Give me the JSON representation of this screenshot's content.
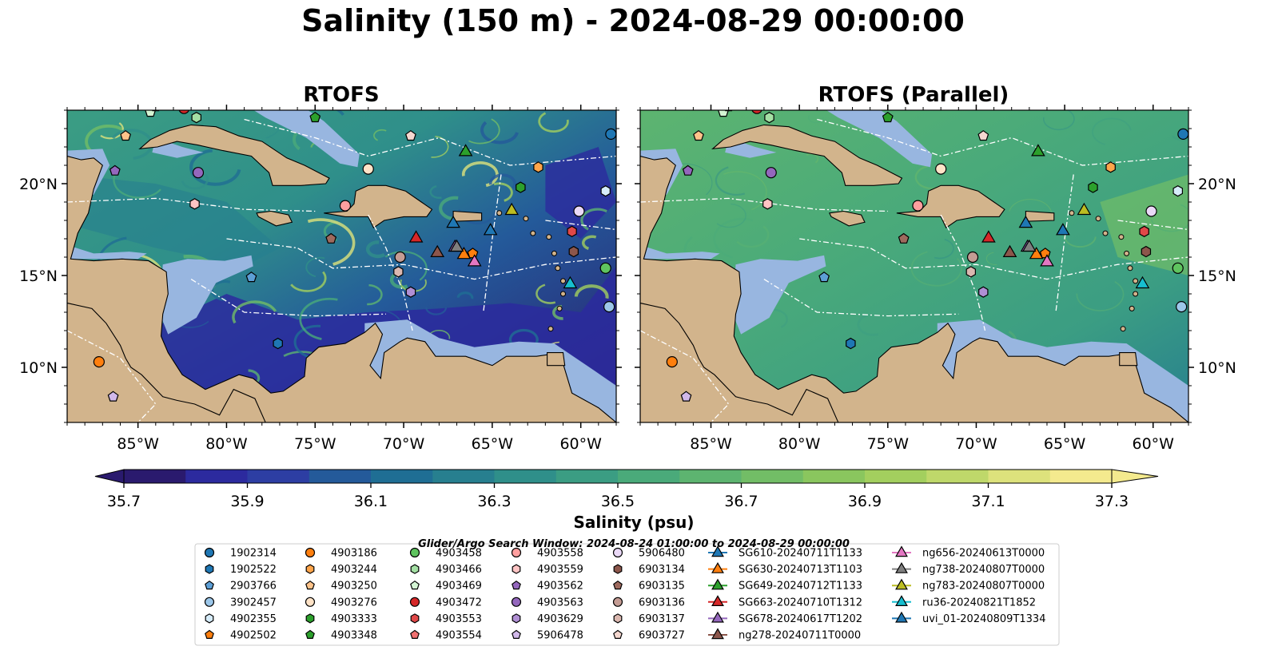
{
  "title": "Salinity (150 m) - 2024-08-29 00:00:00",
  "panels": [
    {
      "title": "RTOFS"
    },
    {
      "title": "RTOFS (Parallel)"
    }
  ],
  "colors": {
    "land": "#d2b48c",
    "shelf": "#98b6e0",
    "ocean_low": "#2a1a6e",
    "ocean_high": "#f8e98a"
  },
  "search_window": "Glider/Argo Search Window: 2024-08-24 01:00:00 to 2024-08-29 00:00:00",
  "chart_data": {
    "type": "heatmap",
    "variable": "Salinity",
    "xlim": [
      -89,
      -58
    ],
    "ylim": [
      7,
      24
    ],
    "x_ticks": [
      -85,
      -80,
      -75,
      -70,
      -65,
      -60
    ],
    "x_tick_labels": [
      "85°W",
      "80°W",
      "75°W",
      "70°W",
      "65°W",
      "60°W"
    ],
    "y_ticks": [
      10,
      15,
      20
    ],
    "y_tick_labels": [
      "10°N",
      "15°N",
      "20°N"
    ],
    "colorbar": {
      "label": "Salinity (psu)",
      "ticks": [
        35.7,
        35.9,
        36.1,
        36.3,
        36.5,
        36.7,
        36.9,
        37.1,
        37.3
      ],
      "tick_labels": [
        "35.7",
        "35.9",
        "36.1",
        "36.3",
        "36.5",
        "36.7",
        "36.9",
        "37.1",
        "37.3"
      ],
      "range": [
        35.7,
        37.3
      ],
      "colors": [
        "#2a1a6e",
        "#2c2a9e",
        "#2d3ea3",
        "#245a9a",
        "#1f6e94",
        "#277f8f",
        "#2f8f8a",
        "#3b9d83",
        "#4aaa7a",
        "#5db470",
        "#72bd66",
        "#8ac65e",
        "#a3cf5e",
        "#bfd86a",
        "#dde27c",
        "#f4ea8e"
      ]
    },
    "platforms": [
      {
        "name": "1902314",
        "color": "#1f77b4",
        "marker": "circle",
        "lon": -58.3,
        "lat": 22.7
      },
      {
        "name": "1902522",
        "color": "#1f77b4",
        "marker": "hexagon",
        "lon": -77.1,
        "lat": 11.3
      },
      {
        "name": "2903766",
        "color": "#5d9fd6",
        "marker": "pentagon",
        "lon": -78.6,
        "lat": 14.9
      },
      {
        "name": "3902457",
        "color": "#9cc7ea",
        "marker": "circle",
        "lon": -58.4,
        "lat": 13.3
      },
      {
        "name": "4902355",
        "color": "#d6ecfa",
        "marker": "hexagon",
        "lon": -58.6,
        "lat": 19.6
      },
      {
        "name": "4902502",
        "color": "#ff7f0e",
        "marker": "pentagon",
        "lon": -66.1,
        "lat": 16.2
      },
      {
        "name": "4903186",
        "color": "#ff7f0e",
        "marker": "circle",
        "lon": -87.2,
        "lat": 10.3
      },
      {
        "name": "4903244",
        "color": "#ffa54a",
        "marker": "hexagon",
        "lon": -62.4,
        "lat": 20.9
      },
      {
        "name": "4903250",
        "color": "#ffc38a",
        "marker": "pentagon",
        "lon": -85.7,
        "lat": 22.6
      },
      {
        "name": "4903276",
        "color": "#ffe3c7",
        "marker": "circle",
        "lon": -72.0,
        "lat": 20.8
      },
      {
        "name": "4903333",
        "color": "#2ca02c",
        "marker": "hexagon",
        "lon": -63.4,
        "lat": 19.8
      },
      {
        "name": "4903348",
        "color": "#2ca02c",
        "marker": "pentagon",
        "lon": -75.0,
        "lat": 23.6
      },
      {
        "name": "4903458",
        "color": "#5fc45f",
        "marker": "circle",
        "lon": -58.6,
        "lat": 15.4
      },
      {
        "name": "4903466",
        "color": "#a4e0a4",
        "marker": "hexagon",
        "lon": -81.7,
        "lat": 23.6
      },
      {
        "name": "4903469",
        "color": "#d4f5d4",
        "marker": "pentagon",
        "lon": -84.3,
        "lat": 23.9
      },
      {
        "name": "4903472",
        "color": "#d62728",
        "marker": "circle",
        "lon": -82.4,
        "lat": 24.1
      },
      {
        "name": "4903553",
        "color": "#e04848",
        "marker": "hexagon",
        "lon": -60.5,
        "lat": 17.4
      },
      {
        "name": "4903554",
        "color": "#f07070",
        "marker": "pentagon",
        "lon": -84.0,
        "lat": 24.2
      },
      {
        "name": "4903558",
        "color": "#ff9f9f",
        "marker": "circle",
        "lon": -73.3,
        "lat": 18.8
      },
      {
        "name": "4903559",
        "color": "#ffc4c4",
        "marker": "hexagon",
        "lon": -81.8,
        "lat": 18.9
      },
      {
        "name": "4903562",
        "color": "#9467bd",
        "marker": "pentagon",
        "lon": -86.3,
        "lat": 20.7
      },
      {
        "name": "4903563",
        "color": "#9467bd",
        "marker": "circle",
        "lon": -81.6,
        "lat": 20.6
      },
      {
        "name": "4903629",
        "color": "#b08fd4",
        "marker": "hexagon",
        "lon": -69.6,
        "lat": 14.1
      },
      {
        "name": "5906478",
        "color": "#d1b8ea",
        "marker": "pentagon",
        "lon": -86.4,
        "lat": 8.4
      },
      {
        "name": "5906480",
        "color": "#ead9f7",
        "marker": "circle",
        "lon": -60.1,
        "lat": 18.5
      },
      {
        "name": "6903134",
        "color": "#8c564b",
        "marker": "hexagon",
        "lon": -60.4,
        "lat": 16.3
      },
      {
        "name": "6903135",
        "color": "#9e6a5e",
        "marker": "pentagon",
        "lon": -74.1,
        "lat": 17.0
      },
      {
        "name": "6903136",
        "color": "#c49c94",
        "marker": "circle",
        "lon": -70.2,
        "lat": 16.0
      },
      {
        "name": "6903137",
        "color": "#dbb8b0",
        "marker": "hexagon",
        "lon": -70.3,
        "lat": 15.2
      },
      {
        "name": "6903727",
        "color": "#f5d8d0",
        "marker": "pentagon",
        "lon": -69.6,
        "lat": 22.6
      },
      {
        "name": "SG610-20240711T1133",
        "color": "#1f77b4",
        "marker": "triangle",
        "lon": -67.2,
        "lat": 17.9
      },
      {
        "name": "SG630-20240713T1103",
        "color": "#ff7f0e",
        "marker": "triangle",
        "lon": -66.6,
        "lat": 16.2
      },
      {
        "name": "SG649-20240712T1133",
        "color": "#2ca02c",
        "marker": "triangle",
        "lon": -66.5,
        "lat": 21.8
      },
      {
        "name": "SG663-20240710T1312",
        "color": "#d62728",
        "marker": "triangle",
        "lon": -69.3,
        "lat": 17.1
      },
      {
        "name": "SG678-20240617T1202",
        "color": "#9467bd",
        "marker": "triangle",
        "lon": -67.1,
        "lat": 16.6
      },
      {
        "name": "ng278-20240711T0000",
        "color": "#8c564b",
        "marker": "triangle",
        "lon": -68.1,
        "lat": 16.3
      },
      {
        "name": "ng656-20240613T0000",
        "color": "#e377c2",
        "marker": "triangle",
        "lon": -66.0,
        "lat": 15.8
      },
      {
        "name": "ng738-20240807T0000",
        "color": "#7f7f7f",
        "marker": "triangle",
        "lon": -67.0,
        "lat": 16.6
      },
      {
        "name": "ng783-20240807T0000",
        "color": "#bcbd22",
        "marker": "triangle",
        "lon": -63.9,
        "lat": 18.6
      },
      {
        "name": "ru36-20240821T1852",
        "color": "#17becf",
        "marker": "triangle",
        "lon": -60.6,
        "lat": 14.6
      },
      {
        "name": "uvi_01-20240809T1334",
        "color": "#1f77b4",
        "marker": "triangle",
        "lon": -65.1,
        "lat": 17.5
      }
    ]
  }
}
